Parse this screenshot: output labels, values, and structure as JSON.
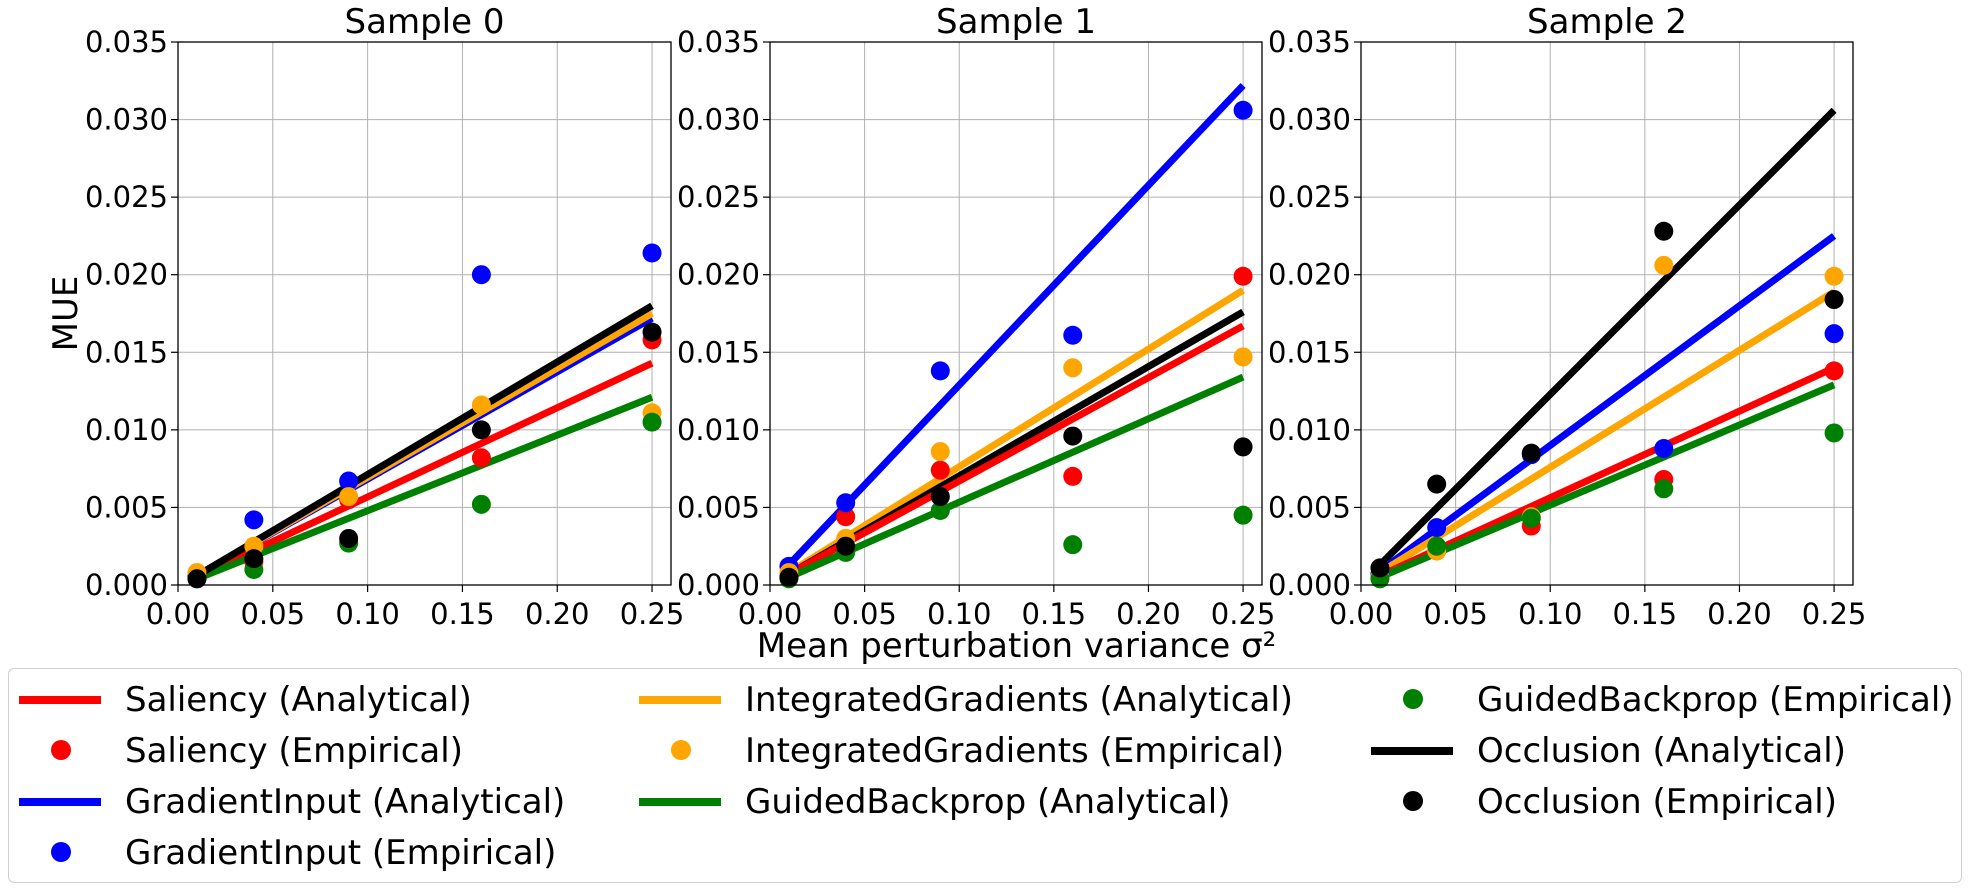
{
  "chart_data": {
    "type": "scatter",
    "shared": {
      "xlabel": "Mean perturbation variance σ²",
      "ylabel": "MUE",
      "xlim": [
        0.0,
        0.26
      ],
      "ylim": [
        0.0,
        0.035
      ],
      "xticks": [
        "0.00",
        "0.05",
        "0.10",
        "0.15",
        "0.20",
        "0.25"
      ],
      "yticks": [
        "0.000",
        "0.005",
        "0.010",
        "0.015",
        "0.020",
        "0.025",
        "0.030",
        "0.035"
      ],
      "grid": true,
      "legend_placement": "bottom",
      "x_points": [
        0.01,
        0.04,
        0.09,
        0.16,
        0.25
      ]
    },
    "methods": [
      {
        "name": "Saliency",
        "color": "#ff0000"
      },
      {
        "name": "GradientInput",
        "color": "#0000ff"
      },
      {
        "name": "IntegratedGradients",
        "color": "#ffa500"
      },
      {
        "name": "GuidedBackprop",
        "color": "#008000"
      },
      {
        "name": "Occlusion",
        "color": "#000000"
      }
    ],
    "legend": [
      {
        "label": "Saliency (Analytical)",
        "kind": "line",
        "color": "#ff0000"
      },
      {
        "label": "Saliency (Empirical)",
        "kind": "dot",
        "color": "#ff0000"
      },
      {
        "label": "GradientInput (Analytical)",
        "kind": "line",
        "color": "#0000ff"
      },
      {
        "label": "GradientInput (Empirical)",
        "kind": "dot",
        "color": "#0000ff"
      },
      {
        "label": "IntegratedGradients (Analytical)",
        "kind": "line",
        "color": "#ffa500"
      },
      {
        "label": "IntegratedGradients (Empirical)",
        "kind": "dot",
        "color": "#ffa500"
      },
      {
        "label": "GuidedBackprop (Analytical)",
        "kind": "line",
        "color": "#008000"
      },
      {
        "label": "GuidedBackprop (Empirical)",
        "kind": "dot",
        "color": "#008000"
      },
      {
        "label": "Occlusion (Analytical)",
        "kind": "line",
        "color": "#000000"
      },
      {
        "label": "Occlusion (Empirical)",
        "kind": "dot",
        "color": "#000000"
      }
    ],
    "panels": [
      {
        "title": "Sample 0",
        "analytical": {
          "GradientInput": [
            [
              0.01,
              0.0006
            ],
            [
              0.25,
              0.0172
            ]
          ],
          "IntegratedGradients": [
            [
              0.01,
              0.0006
            ],
            [
              0.25,
              0.0175
            ]
          ],
          "Saliency": [
            [
              0.01,
              0.0005
            ],
            [
              0.25,
              0.0143
            ]
          ],
          "GuidedBackprop": [
            [
              0.01,
              0.0004
            ],
            [
              0.25,
              0.0121
            ]
          ],
          "Occlusion": [
            [
              0.01,
              0.0006
            ],
            [
              0.25,
              0.018
            ]
          ]
        },
        "empirical": {
          "Saliency": [
            0.0006,
            0.0015,
            0.0055,
            0.0082,
            0.0158
          ],
          "GradientInput": [
            0.0005,
            0.0042,
            0.0067,
            0.02,
            0.0214
          ],
          "IntegratedGradients": [
            0.0008,
            0.0025,
            0.0057,
            0.0116,
            0.0111
          ],
          "GuidedBackprop": [
            0.0004,
            0.001,
            0.0027,
            0.0052,
            0.0105
          ],
          "Occlusion": [
            0.0004,
            0.0017,
            0.003,
            0.01,
            0.0163
          ]
        }
      },
      {
        "title": "Sample 1",
        "analytical": {
          "GradientInput": [
            [
              0.01,
              0.0013
            ],
            [
              0.25,
              0.0322
            ]
          ],
          "IntegratedGradients": [
            [
              0.01,
              0.0008
            ],
            [
              0.25,
              0.019
            ]
          ],
          "Occlusion": [
            [
              0.01,
              0.0007
            ],
            [
              0.25,
              0.0176
            ]
          ],
          "Saliency": [
            [
              0.01,
              0.0007
            ],
            [
              0.25,
              0.0167
            ]
          ],
          "GuidedBackprop": [
            [
              0.01,
              0.0005
            ],
            [
              0.25,
              0.0134
            ]
          ]
        },
        "empirical": {
          "Saliency": [
            0.0006,
            0.0044,
            0.0074,
            0.007,
            0.0199
          ],
          "GradientInput": [
            0.0012,
            0.0053,
            0.0138,
            0.0161,
            0.0306
          ],
          "IntegratedGradients": [
            0.0008,
            0.003,
            0.0086,
            0.014,
            0.0147
          ],
          "GuidedBackprop": [
            0.0004,
            0.0021,
            0.0048,
            0.0026,
            0.0045
          ],
          "Occlusion": [
            0.0005,
            0.0025,
            0.0057,
            0.0096,
            0.0089
          ]
        }
      },
      {
        "title": "Sample 2",
        "analytical": {
          "Occlusion": [
            [
              0.01,
              0.0013
            ],
            [
              0.25,
              0.0306
            ]
          ],
          "GradientInput": [
            [
              0.01,
              0.0009
            ],
            [
              0.25,
              0.0225
            ]
          ],
          "IntegratedGradients": [
            [
              0.01,
              0.0008
            ],
            [
              0.25,
              0.0189
            ]
          ],
          "Saliency": [
            [
              0.01,
              0.0006
            ],
            [
              0.25,
              0.014
            ]
          ],
          "GuidedBackprop": [
            [
              0.01,
              0.0005
            ],
            [
              0.25,
              0.0129
            ]
          ]
        },
        "empirical": {
          "Saliency": [
            0.0005,
            0.0022,
            0.0038,
            0.0068,
            0.0138
          ],
          "GradientInput": [
            0.0007,
            0.0037,
            0.0084,
            0.0088,
            0.0162
          ],
          "IntegratedGradients": [
            0.0005,
            0.0022,
            0.0044,
            0.0206,
            0.0199
          ],
          "GuidedBackprop": [
            0.0004,
            0.0025,
            0.0043,
            0.0062,
            0.0098
          ],
          "Occlusion": [
            0.0011,
            0.0065,
            0.0085,
            0.0228,
            0.0184
          ]
        }
      }
    ]
  }
}
